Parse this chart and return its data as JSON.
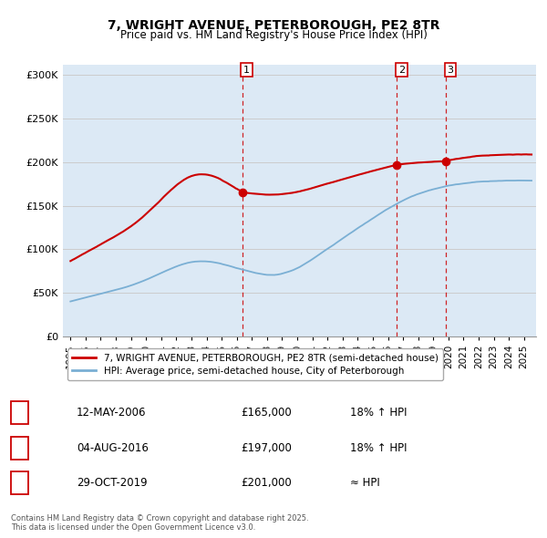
{
  "title": "7, WRIGHT AVENUE, PETERBOROUGH, PE2 8TR",
  "subtitle": "Price paid vs. HM Land Registry's House Price Index (HPI)",
  "ylabel_ticks": [
    "£0",
    "£50K",
    "£100K",
    "£150K",
    "£200K",
    "£250K",
    "£300K"
  ],
  "ytick_values": [
    0,
    50000,
    100000,
    150000,
    200000,
    250000,
    300000
  ],
  "ylim": [
    0,
    312000
  ],
  "xlim_start": 1994.5,
  "xlim_end": 2025.8,
  "sale_dates": [
    2006.36,
    2016.59,
    2019.83
  ],
  "sale_prices": [
    165000,
    197000,
    201000
  ],
  "sale_labels": [
    "1",
    "2",
    "3"
  ],
  "legend_line1": "7, WRIGHT AVENUE, PETERBOROUGH, PE2 8TR (semi-detached house)",
  "legend_line2": "HPI: Average price, semi-detached house, City of Peterborough",
  "table_data": [
    [
      "1",
      "12-MAY-2006",
      "£165,000",
      "18% ↑ HPI"
    ],
    [
      "2",
      "04-AUG-2016",
      "£197,000",
      "18% ↑ HPI"
    ],
    [
      "3",
      "29-OCT-2019",
      "£201,000",
      "≈ HPI"
    ]
  ],
  "footer": "Contains HM Land Registry data © Crown copyright and database right 2025.\nThis data is licensed under the Open Government Licence v3.0.",
  "red_color": "#cc0000",
  "blue_color": "#7aafd4",
  "blue_fill": "#dce9f5",
  "dashed_color": "#cc0000",
  "bg_color": "#ffffff",
  "grid_color": "#cccccc"
}
